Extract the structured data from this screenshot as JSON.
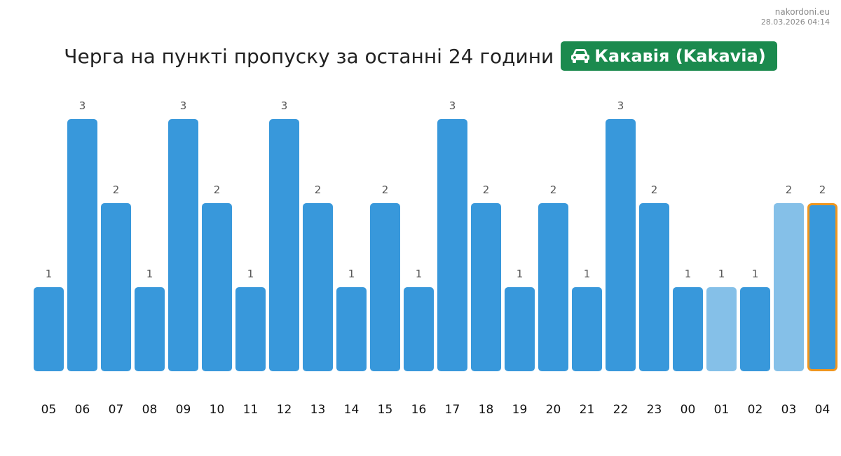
{
  "watermark": {
    "site": "nakordoni.eu",
    "timestamp": "28.03.2026 04:14"
  },
  "header": {
    "title": "Черга на пункті пропуску за останні 24 години",
    "checkpoint_name": "Какавія (Kakavia)",
    "checkpoint_icon": "car-icon"
  },
  "colors": {
    "badge": "#1b8a4e",
    "bar": "#3898db",
    "bar_light": "#85c0e8",
    "highlight_border": "#f0961e",
    "value_label": "#555555",
    "tick_label": "#111111"
  },
  "chart_data": {
    "type": "bar",
    "title": "Черга на пункті пропуску за останні 24 години",
    "xlabel": "",
    "ylabel": "",
    "ylim": [
      0,
      3
    ],
    "grid": false,
    "legend": "none",
    "categories": [
      "05",
      "06",
      "07",
      "08",
      "09",
      "10",
      "11",
      "12",
      "13",
      "14",
      "15",
      "16",
      "17",
      "18",
      "19",
      "20",
      "21",
      "22",
      "23",
      "00",
      "01",
      "02",
      "03",
      "04"
    ],
    "values": [
      1,
      3,
      2,
      1,
      3,
      2,
      1,
      3,
      2,
      1,
      2,
      1,
      3,
      2,
      1,
      2,
      1,
      3,
      2,
      1,
      1,
      1,
      2,
      2
    ],
    "data_labels": [
      "1",
      "3",
      "2",
      "1",
      "3",
      "2",
      "1",
      "3",
      "2",
      "1",
      "2",
      "1",
      "3",
      "2",
      "1",
      "2",
      "1",
      "3",
      "2",
      "1",
      "1",
      "1",
      "2",
      "2"
    ],
    "light_bars": [
      "01",
      "03"
    ],
    "highlighted": "04"
  }
}
